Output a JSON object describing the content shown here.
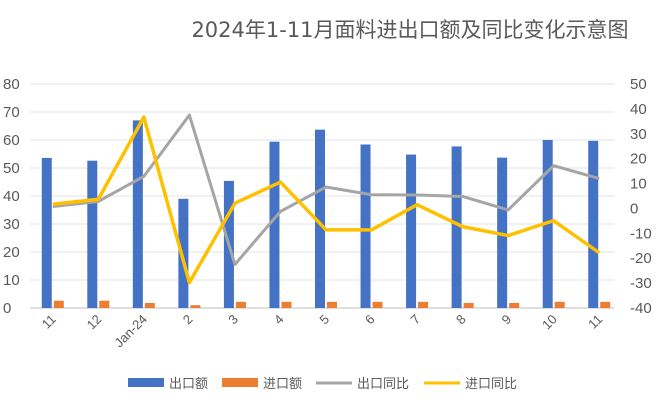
{
  "chart_data": {
    "type": "bar+line",
    "title": "2024年1-11月面料进出口额及同比变化示意图",
    "categories": [
      "11",
      "12",
      "Jan-24",
      "2",
      "3",
      "4",
      "5",
      "6",
      "7",
      "8",
      "9",
      "10",
      "11"
    ],
    "left_axis": {
      "ylim": [
        0,
        80
      ],
      "ticks": [
        0,
        10,
        20,
        30,
        40,
        50,
        60,
        70,
        80
      ]
    },
    "right_axis": {
      "ylim": [
        -40,
        50
      ],
      "ticks": [
        -40,
        -30,
        -20,
        -10,
        0,
        10,
        20,
        30,
        40,
        50
      ]
    },
    "grid": true,
    "legend_position": "bottom",
    "series": [
      {
        "name": "出口额",
        "type": "bar",
        "axis": "left",
        "color": "#4472C4",
        "values": [
          53.6,
          52.6,
          67,
          39,
          45.4,
          59.4,
          63.7,
          58.4,
          54.8,
          57.7,
          53.7,
          60,
          59.7
        ]
      },
      {
        "name": "进口额",
        "type": "bar",
        "axis": "left",
        "color": "#ED7D31",
        "values": [
          2.6,
          2.6,
          1.8,
          1.0,
          2.2,
          2.2,
          2.2,
          2.2,
          2.2,
          1.8,
          1.8,
          2.2,
          2.2
        ]
      },
      {
        "name": "出口同比",
        "type": "line",
        "axis": "right",
        "color": "#A5A5A5",
        "values": [
          0.8,
          2.8,
          12.9,
          37.5,
          -22.5,
          -1.2,
          8.6,
          5.5,
          5.4,
          4.8,
          -0.6,
          17.2,
          12
        ]
      },
      {
        "name": "进口同比",
        "type": "line",
        "axis": "right",
        "color": "#FFC000",
        "values": [
          1.7,
          3.7,
          36.7,
          -29.8,
          2.1,
          10.6,
          -8.6,
          -8.6,
          1.5,
          -7.3,
          -10.9,
          -4.9,
          -17.8
        ]
      }
    ]
  }
}
